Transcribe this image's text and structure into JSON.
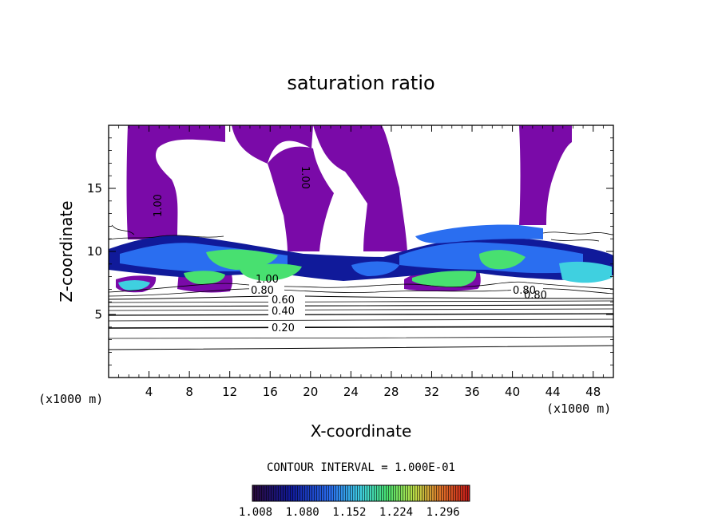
{
  "chart_data": {
    "type": "heatmap",
    "title": "saturation ratio",
    "xlabel": "X-coordinate",
    "ylabel": "Z-coordinate",
    "x_unit": "(x1000 m)",
    "y_unit": "(x1000 m)",
    "xlim": [
      0,
      50
    ],
    "ylim": [
      0,
      20
    ],
    "x_ticks": [
      4,
      8,
      12,
      16,
      20,
      24,
      28,
      32,
      36,
      40,
      44,
      48
    ],
    "y_ticks": [
      5,
      10,
      15
    ],
    "contour_interval_label": "CONTOUR INTERVAL = 1.000E-01",
    "contour_labels": [
      "0.20",
      "0.40",
      "0.60",
      "0.80",
      "1.00",
      "1.00",
      "1.00",
      "0.80",
      "0.80"
    ],
    "colorbar": {
      "ticks": [
        "1.008",
        "1.080",
        "1.152",
        "1.224",
        "1.296"
      ],
      "colors": [
        "#2a0a3a",
        "#101a9a",
        "#2a6ef0",
        "#3fd0e0",
        "#48e070",
        "#b8e048",
        "#e07028",
        "#c01818"
      ],
      "fill_color": "#7a0aa8"
    }
  }
}
